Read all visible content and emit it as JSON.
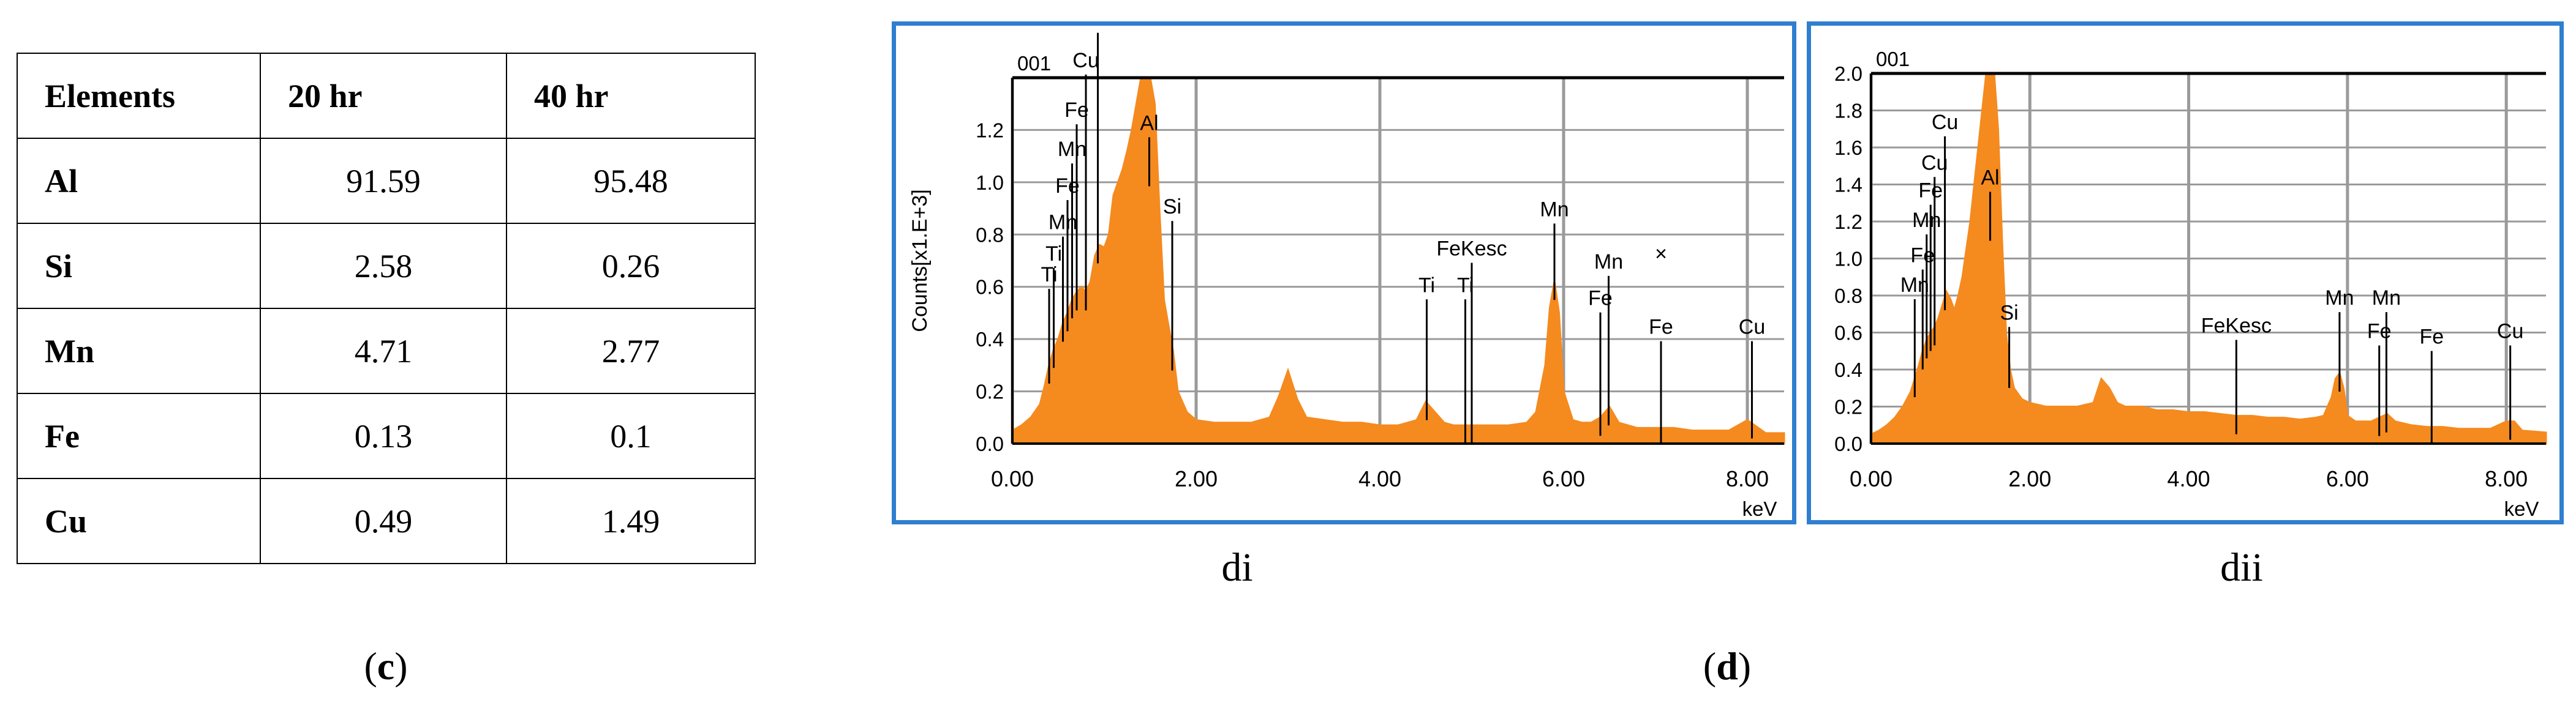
{
  "panel_c": {
    "caption_open": "(",
    "caption_letter": "c",
    "caption_close": ")",
    "table": {
      "headers": [
        "Elements",
        "20 hr",
        "40 hr"
      ],
      "rows": [
        [
          "Al",
          "91.59",
          "95.48"
        ],
        [
          "Si",
          "2.58",
          "0.26"
        ],
        [
          "Mn",
          "4.71",
          "2.77"
        ],
        [
          "Fe",
          "0.13",
          "0.1"
        ],
        [
          "Cu",
          "0.49",
          "1.49"
        ]
      ]
    }
  },
  "panel_d": {
    "caption_open": "(",
    "caption_letter": "d",
    "caption_close": ")"
  },
  "chart_data": [
    {
      "type": "area",
      "id": "di",
      "subtitle": "di",
      "corner_label": "001",
      "ylabel": "Counts[x1.E+3]",
      "xlabel": "keV",
      "xlim": [
        0,
        8.4
      ],
      "ylim": [
        0,
        1.4
      ],
      "xticks": [
        "0.00",
        "2.00",
        "4.00",
        "6.00",
        "8.00"
      ],
      "xtick_values": [
        0,
        2,
        4,
        6,
        8
      ],
      "yticks": [
        "0.0",
        "0.2",
        "0.4",
        "0.6",
        "0.8",
        "1.0",
        "1.2"
      ],
      "ytick_values": [
        0,
        0.2,
        0.4,
        0.6,
        0.8,
        1.0,
        1.2
      ],
      "grid": true,
      "fill_color": "#f58a1f",
      "series": [
        {
          "x": [
            0.0,
            0.1,
            0.2,
            0.3,
            0.35,
            0.4,
            0.45,
            0.5,
            0.55,
            0.6,
            0.65,
            0.7,
            0.75,
            0.8,
            0.85,
            0.9,
            0.95,
            1.0,
            1.05,
            1.1,
            1.15,
            1.2,
            1.25,
            1.3,
            1.35,
            1.4,
            1.45,
            1.5,
            1.55,
            1.6,
            1.65,
            1.7,
            1.75,
            1.8,
            1.9,
            2.0,
            2.2,
            2.4,
            2.6,
            2.8,
            2.9,
            3.0,
            3.1,
            3.2,
            3.4,
            3.6,
            3.8,
            4.0,
            4.2,
            4.4,
            4.5,
            4.6,
            4.7,
            4.8,
            5.0,
            5.2,
            5.4,
            5.6,
            5.7,
            5.8,
            5.85,
            5.9,
            5.95,
            6.0,
            6.1,
            6.2,
            6.3,
            6.4,
            6.5,
            6.6,
            6.8,
            7.0,
            7.2,
            7.4,
            7.6,
            7.8,
            8.0,
            8.2,
            8.4
          ],
          "y": [
            0.05,
            0.07,
            0.1,
            0.15,
            0.22,
            0.3,
            0.36,
            0.4,
            0.46,
            0.5,
            0.55,
            0.58,
            0.6,
            0.58,
            0.62,
            0.72,
            0.76,
            0.75,
            0.8,
            0.95,
            1.0,
            1.05,
            1.12,
            1.2,
            1.3,
            1.4,
            1.4,
            1.4,
            1.3,
            0.9,
            0.55,
            0.45,
            0.35,
            0.2,
            0.12,
            0.09,
            0.08,
            0.08,
            0.08,
            0.1,
            0.18,
            0.28,
            0.17,
            0.1,
            0.09,
            0.08,
            0.08,
            0.07,
            0.07,
            0.09,
            0.16,
            0.12,
            0.08,
            0.07,
            0.07,
            0.07,
            0.07,
            0.08,
            0.12,
            0.3,
            0.52,
            0.62,
            0.5,
            0.2,
            0.09,
            0.08,
            0.08,
            0.1,
            0.14,
            0.08,
            0.06,
            0.06,
            0.06,
            0.05,
            0.05,
            0.05,
            0.09,
            0.04,
            0.04
          ]
        }
      ],
      "annotations": [
        {
          "text": "Ti",
          "x": 0.4,
          "y": 0.62
        },
        {
          "text": "Ti",
          "x": 0.45,
          "y": 0.7
        },
        {
          "text": "Mn",
          "x": 0.55,
          "y": 0.82
        },
        {
          "text": "Fe",
          "x": 0.6,
          "y": 0.96
        },
        {
          "text": "Mn",
          "x": 0.65,
          "y": 1.1
        },
        {
          "text": "Fe",
          "x": 0.7,
          "y": 1.25
        },
        {
          "text": "Cu",
          "x": 0.8,
          "y": 1.44
        },
        {
          "text": "Cu",
          "x": 0.93,
          "y": 1.6
        },
        {
          "text": "Al",
          "x": 1.49,
          "y": 1.2
        },
        {
          "text": "Si",
          "x": 1.74,
          "y": 0.88
        },
        {
          "text": "FeKesc",
          "x": 5.0,
          "y": 0.72
        },
        {
          "text": "Ti",
          "x": 4.51,
          "y": 0.58
        },
        {
          "text": "Ti",
          "x": 4.93,
          "y": 0.58
        },
        {
          "text": "Mn",
          "x": 5.9,
          "y": 0.87
        },
        {
          "text": "Mn",
          "x": 6.49,
          "y": 0.67
        },
        {
          "text": "Fe",
          "x": 6.4,
          "y": 0.53
        },
        {
          "text": "Fe",
          "x": 7.06,
          "y": 0.42
        },
        {
          "text": "Cu",
          "x": 8.05,
          "y": 0.42
        },
        {
          "text": "×",
          "x": 7.06,
          "y": 0.7
        }
      ]
    },
    {
      "type": "area",
      "id": "dii",
      "subtitle": "dii",
      "corner_label": "001",
      "xlabel": "keV",
      "xlim": [
        0,
        8.5
      ],
      "ylim": [
        0,
        2.0
      ],
      "xticks": [
        "0.00",
        "2.00",
        "4.00",
        "6.00",
        "8.00"
      ],
      "xtick_values": [
        0,
        2,
        4,
        6,
        8
      ],
      "yticks": [
        "0.0",
        "0.2",
        "0.4",
        "0.6",
        "0.8",
        "1.0",
        "1.2",
        "1.4",
        "1.6",
        "1.8",
        "2.0"
      ],
      "ytick_values": [
        0,
        0.2,
        0.4,
        0.6,
        0.8,
        1.0,
        1.2,
        1.4,
        1.6,
        1.8,
        2.0
      ],
      "grid": true,
      "fill_color": "#f58a1f",
      "series": [
        {
          "x": [
            0.0,
            0.1,
            0.2,
            0.3,
            0.4,
            0.5,
            0.55,
            0.6,
            0.65,
            0.7,
            0.75,
            0.8,
            0.85,
            0.9,
            0.95,
            1.0,
            1.05,
            1.1,
            1.15,
            1.2,
            1.25,
            1.3,
            1.35,
            1.4,
            1.45,
            1.5,
            1.55,
            1.6,
            1.65,
            1.7,
            1.75,
            1.8,
            1.9,
            2.0,
            2.2,
            2.4,
            2.6,
            2.8,
            2.9,
            3.0,
            3.1,
            3.2,
            3.4,
            3.6,
            3.8,
            4.0,
            4.2,
            4.4,
            4.6,
            4.8,
            5.0,
            5.2,
            5.4,
            5.6,
            5.7,
            5.8,
            5.85,
            5.9,
            5.95,
            6.0,
            6.1,
            6.2,
            6.3,
            6.4,
            6.5,
            6.6,
            6.8,
            7.0,
            7.2,
            7.4,
            7.6,
            7.8,
            8.0,
            8.1,
            8.2,
            8.5
          ],
          "y": [
            0.05,
            0.07,
            0.1,
            0.14,
            0.2,
            0.28,
            0.35,
            0.42,
            0.5,
            0.56,
            0.6,
            0.63,
            0.68,
            0.75,
            0.82,
            0.78,
            0.72,
            0.8,
            0.9,
            1.05,
            1.2,
            1.4,
            1.6,
            1.8,
            2.0,
            2.0,
            2.0,
            1.7,
            1.1,
            0.6,
            0.4,
            0.3,
            0.24,
            0.22,
            0.2,
            0.2,
            0.2,
            0.22,
            0.35,
            0.3,
            0.22,
            0.2,
            0.2,
            0.18,
            0.18,
            0.17,
            0.17,
            0.16,
            0.15,
            0.15,
            0.14,
            0.14,
            0.13,
            0.14,
            0.15,
            0.25,
            0.35,
            0.38,
            0.3,
            0.15,
            0.12,
            0.12,
            0.12,
            0.14,
            0.16,
            0.12,
            0.1,
            0.09,
            0.09,
            0.08,
            0.08,
            0.08,
            0.12,
            0.12,
            0.07,
            0.06
          ]
        }
      ],
      "annotations": [
        {
          "text": "Mn",
          "x": 0.55,
          "y": 0.82
        },
        {
          "text": "Fe",
          "x": 0.65,
          "y": 0.98
        },
        {
          "text": "Mn",
          "x": 0.7,
          "y": 1.17
        },
        {
          "text": "Fe",
          "x": 0.75,
          "y": 1.33
        },
        {
          "text": "Cu",
          "x": 0.8,
          "y": 1.48
        },
        {
          "text": "Cu",
          "x": 0.93,
          "y": 1.7
        },
        {
          "text": "Al",
          "x": 1.5,
          "y": 1.4
        },
        {
          "text": "Si",
          "x": 1.74,
          "y": 0.67
        },
        {
          "text": "FeKesc",
          "x": 4.6,
          "y": 0.6
        },
        {
          "text": "Mn",
          "x": 5.9,
          "y": 0.75
        },
        {
          "text": "Mn",
          "x": 6.49,
          "y": 0.75
        },
        {
          "text": "Fe",
          "x": 6.4,
          "y": 0.57
        },
        {
          "text": "Fe",
          "x": 7.06,
          "y": 0.54
        },
        {
          "text": "Cu",
          "x": 8.05,
          "y": 0.57
        }
      ]
    }
  ]
}
